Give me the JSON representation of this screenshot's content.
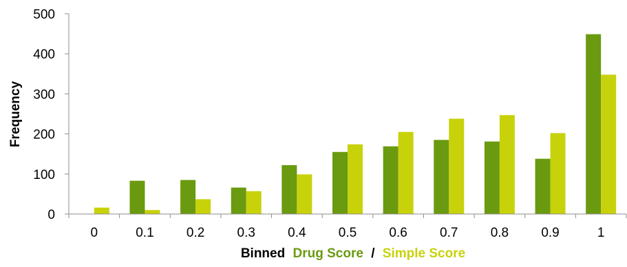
{
  "chart_data": {
    "type": "bar",
    "categories": [
      "0",
      "0.1",
      "0.2",
      "0.3",
      "0.4",
      "0.5",
      "0.6",
      "0.7",
      "0.8",
      "0.9",
      "1"
    ],
    "series": [
      {
        "name": "Drug Score",
        "color": "#6a9a0f",
        "values": [
          0,
          83,
          85,
          66,
          122,
          155,
          169,
          185,
          181,
          138,
          449
        ]
      },
      {
        "name": "Simple Score",
        "color": "#c8d20a",
        "values": [
          16,
          10,
          37,
          57,
          99,
          174,
          205,
          238,
          247,
          202,
          348
        ]
      }
    ],
    "ylabel": "Frequency",
    "xlabel_parts": [
      "Binned",
      "Drug Score",
      "/",
      "Simple Score"
    ],
    "yticks": [
      "0",
      "100",
      "200",
      "300",
      "400",
      "500"
    ],
    "ylim": [
      0,
      500
    ],
    "grid": false,
    "legend": "none"
  }
}
